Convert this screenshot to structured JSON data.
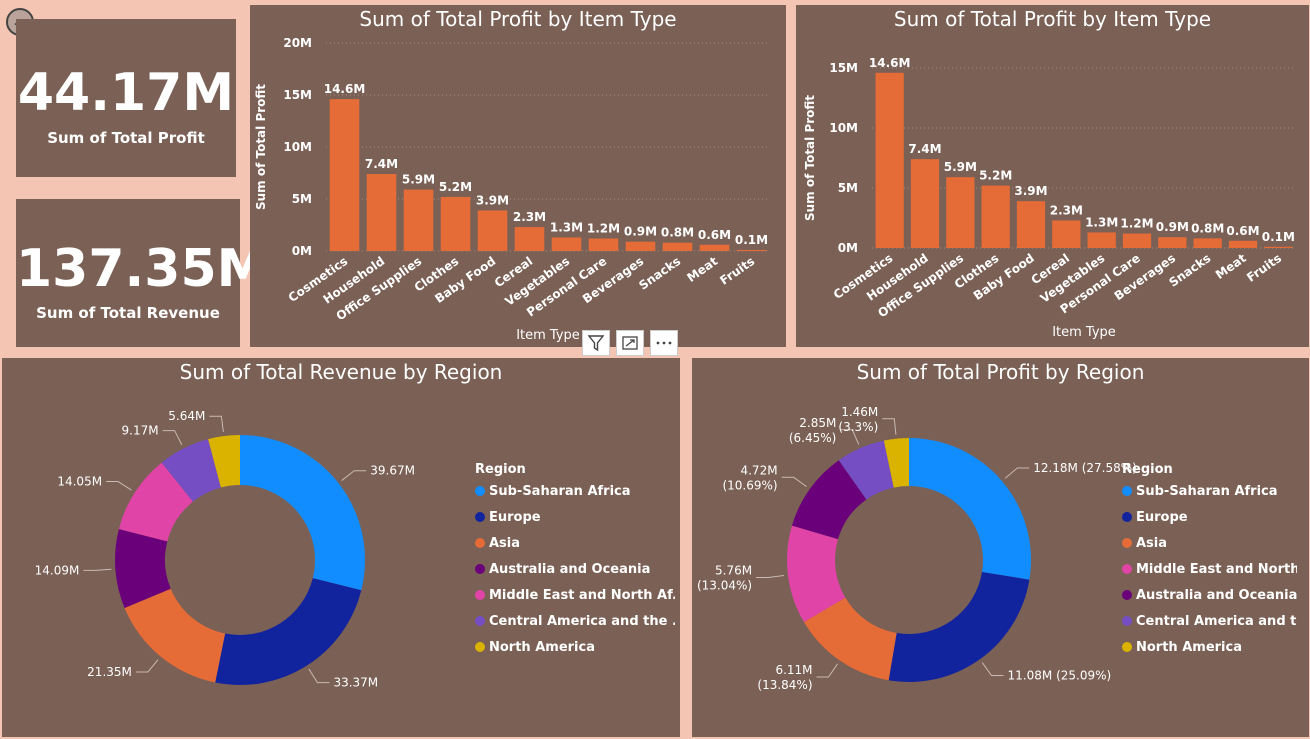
{
  "kpis": [
    {
      "value": "44.17M",
      "label": "Sum of Total Profit"
    },
    {
      "value": "137.35M",
      "label": "Sum of Total Revenue"
    }
  ],
  "visual_header": {
    "filter_icon": "filter-icon",
    "focus_icon": "focus-mode-icon",
    "more_icon": "more-options-icon"
  },
  "back_icon": "back-arrow-icon",
  "colors": {
    "bar": "#e66c37",
    "tile": "#7a6055",
    "page": "#f4c5b3"
  },
  "chart_data": [
    {
      "type": "bar",
      "title": "Sum of Total Profit by Item Type",
      "xlabel": "Item Type",
      "ylabel": "Sum of Total Profit",
      "categories": [
        "Cosmetics",
        "Household",
        "Office Supplies",
        "Clothes",
        "Baby Food",
        "Cereal",
        "Vegetables",
        "Personal Care",
        "Beverages",
        "Snacks",
        "Meat",
        "Fruits"
      ],
      "values": [
        14.6,
        7.4,
        5.9,
        5.2,
        3.9,
        2.3,
        1.3,
        1.2,
        0.9,
        0.8,
        0.6,
        0.1
      ],
      "data_labels": [
        "14.6M",
        "7.4M",
        "5.9M",
        "5.2M",
        "3.9M",
        "2.3M",
        "1.3M",
        "1.2M",
        "0.9M",
        "0.8M",
        "0.6M",
        "0.1M"
      ],
      "yticks": [
        "0M",
        "5M",
        "10M",
        "15M",
        "20M"
      ],
      "ylim": [
        0,
        20
      ],
      "grid": true
    },
    {
      "type": "bar",
      "title": "Sum of Total Profit by Item Type",
      "xlabel": "Item Type",
      "ylabel": "Sum of Total Profit",
      "categories": [
        "Cosmetics",
        "Household",
        "Office Supplies",
        "Clothes",
        "Baby Food",
        "Cereal",
        "Vegetables",
        "Personal Care",
        "Beverages",
        "Snacks",
        "Meat",
        "Fruits"
      ],
      "values": [
        14.6,
        7.4,
        5.9,
        5.2,
        3.9,
        2.3,
        1.3,
        1.2,
        0.9,
        0.8,
        0.6,
        0.1
      ],
      "data_labels": [
        "14.6M",
        "7.4M",
        "5.9M",
        "5.2M",
        "3.9M",
        "2.3M",
        "1.3M",
        "1.2M",
        "0.9M",
        "0.8M",
        "0.6M",
        "0.1M"
      ],
      "yticks": [
        "0M",
        "5M",
        "10M",
        "15M"
      ],
      "ylim": [
        0,
        15
      ],
      "grid": true
    },
    {
      "type": "pie",
      "title": "Sum of Total Revenue by Region",
      "legend_title": "Region",
      "legend_position": "right",
      "slices": [
        {
          "name": "Sub-Saharan Africa",
          "value": 39.67,
          "label": "39.67M",
          "color": "#118dff"
        },
        {
          "name": "Europe",
          "value": 33.37,
          "label": "33.37M",
          "color": "#12239e"
        },
        {
          "name": "Asia",
          "value": 21.35,
          "label": "21.35M",
          "color": "#e66c37"
        },
        {
          "name": "Australia and Oceania",
          "value": 14.09,
          "label": "14.09M",
          "color": "#6b007b"
        },
        {
          "name": "Middle East and North Af...",
          "value": 14.05,
          "label": "14.05M",
          "color": "#e044a7"
        },
        {
          "name": "Central America and the ...",
          "value": 9.17,
          "label": "9.17M",
          "color": "#744ec2"
        },
        {
          "name": "North America",
          "value": 5.64,
          "label": "5.64M",
          "color": "#d9b300"
        }
      ]
    },
    {
      "type": "pie",
      "title": "Sum of Total Profit by Region",
      "legend_title": "Region",
      "legend_position": "right",
      "slices": [
        {
          "name": "Sub-Saharan Africa",
          "value": 12.18,
          "label": "12.18M (27.58%)",
          "color": "#118dff"
        },
        {
          "name": "Europe",
          "value": 11.08,
          "label": "11.08M (25.09%)",
          "color": "#12239e"
        },
        {
          "name": "Asia",
          "value": 6.11,
          "label": "6.11M (13.84%)",
          "color": "#e66c37"
        },
        {
          "name": "Middle East and North...",
          "value": 5.76,
          "label": "5.76M (13.04%)",
          "color": "#e044a7"
        },
        {
          "name": "Australia and Oceania",
          "value": 4.72,
          "label": "4.72M (10.69%)",
          "color": "#6b007b"
        },
        {
          "name": "Central America and t...",
          "value": 2.85,
          "label": "2.85M (6.45%)",
          "color": "#744ec2"
        },
        {
          "name": "North America",
          "value": 1.46,
          "label": "1.46M (3.3%)",
          "color": "#d9b300"
        }
      ]
    }
  ]
}
